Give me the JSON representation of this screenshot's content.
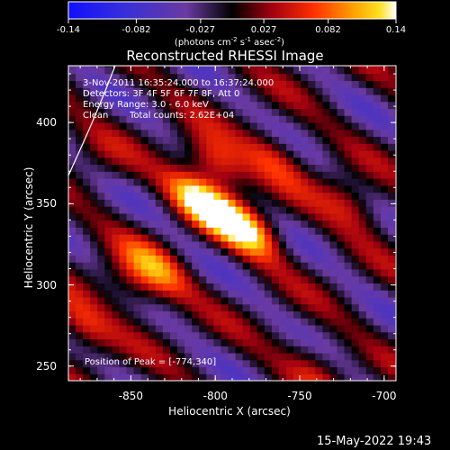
{
  "colorbar": {
    "min_label": "-0.14",
    "tick_labels": [
      "-0.14",
      "-0.082",
      "-0.027",
      "0.027",
      "0.082",
      "0.14"
    ],
    "tick_values": [
      -0.14,
      -0.082,
      -0.027,
      0.027,
      0.082,
      0.14
    ],
    "range": [
      -0.14,
      0.14
    ],
    "unit_parts": {
      "a": "(photons cm",
      "a_sup": "-2",
      "b": " s",
      "b_sup": "-1",
      "c": " asec",
      "c_sup": "-2",
      "d": ")"
    },
    "colormap": "blue-purple-black-red-orange-yellow-white"
  },
  "header": {
    "title": "Reconstructed RHESSI Image"
  },
  "info": {
    "time_range": "3-Nov-2011 16:35:24.000 to 16:37:24.000",
    "detectors": "Detectors: 3F 4F 5F 6F 7F 8F, Att 0",
    "energy": "Energy Range: 3.0 - 6.0 keV",
    "algorithm": "Clean",
    "counts": "Total counts: 2.62E+04",
    "peak": "Position of Peak = [-774,340]"
  },
  "footer": {
    "timestamp": "15-May-2022 19:43"
  },
  "chart_data": {
    "type": "heatmap",
    "title": "Reconstructed RHESSI Image",
    "xlabel": "Heliocentric X (arcsec)",
    "ylabel": "Heliocentric Y (arcsec)",
    "xlim": [
      -887,
      -693
    ],
    "ylim": [
      241,
      435
    ],
    "x_ticks": [
      -850,
      -800,
      -750,
      -700
    ],
    "x_tick_labels": [
      "-850",
      "-800",
      "-750",
      "-700"
    ],
    "y_ticks": [
      250,
      300,
      350,
      400
    ],
    "y_tick_labels": [
      "250",
      "300",
      "350",
      "400"
    ],
    "value_range": [
      -0.14,
      0.14
    ],
    "peak": {
      "x": -774,
      "y": 340
    },
    "approx_sources": [
      {
        "x": -808,
        "y": 352,
        "value": 0.14
      },
      {
        "x": -782,
        "y": 335,
        "value": 0.14
      },
      {
        "x": -800,
        "y": 375,
        "value": 0.1
      },
      {
        "x": -835,
        "y": 310,
        "value": 0.08
      },
      {
        "x": -850,
        "y": 300,
        "value": 0.06
      },
      {
        "x": -765,
        "y": 380,
        "value": 0.06
      },
      {
        "x": -720,
        "y": 350,
        "value": 0.07
      },
      {
        "x": -740,
        "y": 250,
        "value": 0.05
      },
      {
        "x": -880,
        "y": 275,
        "value": 0.08
      },
      {
        "x": -870,
        "y": 380,
        "value": 0.03
      }
    ],
    "grid": false,
    "limb_curve": "solar limb arc near top-left"
  }
}
